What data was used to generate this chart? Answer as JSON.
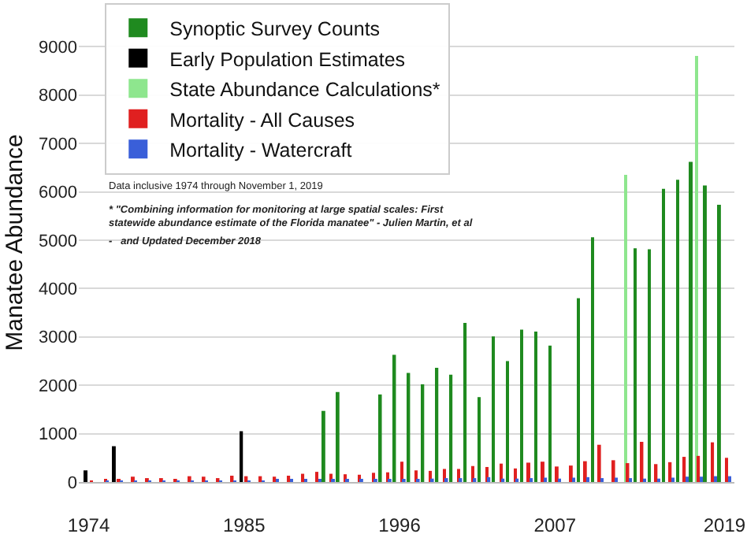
{
  "chart_data": {
    "type": "bar",
    "ylabel": "Manatee Abundance",
    "series": [
      {
        "name": "Synoptic Survey Counts",
        "color": "#1f8a1f",
        "x": [
          1991,
          1992,
          1995,
          1996,
          1997,
          1998,
          1999,
          2000,
          2001,
          2002,
          2003,
          2004,
          2005,
          2006,
          2007,
          2009,
          2010,
          2013,
          2014,
          2015,
          2016,
          2017,
          2018,
          2019
        ],
        "values": [
          1470,
          1860,
          1810,
          2630,
          2255,
          2020,
          2360,
          2220,
          3290,
          1755,
          3010,
          2500,
          3150,
          3110,
          2820,
          3800,
          5060,
          4830,
          4810,
          6060,
          6250,
          6620,
          6130,
          5730
        ]
      },
      {
        "name": "Early Population Estimates",
        "color": "#000000",
        "x": [
          1974,
          1976,
          1985
        ],
        "values": [
          240,
          740,
          1050
        ]
      },
      {
        "name": "State Abundance Calculations*",
        "color": "#8ee68e",
        "x": [
          2012,
          2017
        ],
        "values": [
          6350,
          8810
        ]
      },
      {
        "name": "Mortality - All Causes",
        "color": "#e02020",
        "x": [
          1974,
          1975,
          1976,
          1977,
          1978,
          1979,
          1980,
          1981,
          1982,
          1983,
          1984,
          1985,
          1986,
          1987,
          1988,
          1989,
          1990,
          1991,
          1992,
          1993,
          1994,
          1995,
          1996,
          1997,
          1998,
          1999,
          2000,
          2001,
          2002,
          2003,
          2004,
          2005,
          2006,
          2007,
          2008,
          2009,
          2010,
          2011,
          2012,
          2013,
          2014,
          2015,
          2016,
          2017,
          2018,
          2019
        ],
        "values": [
          10,
          60,
          60,
          110,
          80,
          80,
          60,
          120,
          110,
          80,
          130,
          120,
          120,
          110,
          130,
          170,
          210,
          170,
          160,
          150,
          190,
          200,
          420,
          240,
          230,
          270,
          270,
          330,
          310,
          380,
          280,
          400,
          420,
          320,
          340,
          430,
          770,
          450,
          390,
          830,
          370,
          410,
          520,
          540,
          820,
          500
        ]
      },
      {
        "name": "Mortality - Watercraft",
        "color": "#3a5fd9",
        "x": [
          1974,
          1975,
          1976,
          1977,
          1978,
          1979,
          1980,
          1981,
          1982,
          1983,
          1984,
          1985,
          1986,
          1987,
          1988,
          1989,
          1990,
          1991,
          1992,
          1993,
          1994,
          1995,
          1996,
          1997,
          1998,
          1999,
          2000,
          2001,
          2002,
          2003,
          2004,
          2005,
          2006,
          2007,
          2008,
          2009,
          2010,
          2011,
          2012,
          2013,
          2014,
          2015,
          2016,
          2017,
          2018,
          2019
        ],
        "values": [
          0,
          10,
          10,
          10,
          20,
          20,
          20,
          20,
          20,
          20,
          30,
          30,
          30,
          40,
          40,
          50,
          50,
          50,
          40,
          40,
          50,
          40,
          60,
          50,
          70,
          80,
          80,
          80,
          100,
          70,
          70,
          80,
          90,
          70,
          90,
          100,
          80,
          90,
          80,
          70,
          70,
          90,
          110,
          110,
          120,
          120
        ]
      }
    ],
    "xlim": [
      1973.3,
      2019.7
    ],
    "xticks": [
      1974,
      1985,
      1996,
      2007,
      2019
    ],
    "ylim": [
      0,
      9900
    ],
    "yticks": [
      0,
      1000,
      2000,
      3000,
      4000,
      5000,
      6000,
      7000,
      8000,
      9000
    ],
    "grid": "y",
    "legend": "top left",
    "annotations": [
      "Data inclusive 1974 through November 1, 2019",
      "* \"Combining information for monitoring at large spatial scales: First statewide abundance estimate of the Florida manatee\" - Julien Martin, et al",
      "-   and Updated December 2018"
    ]
  }
}
